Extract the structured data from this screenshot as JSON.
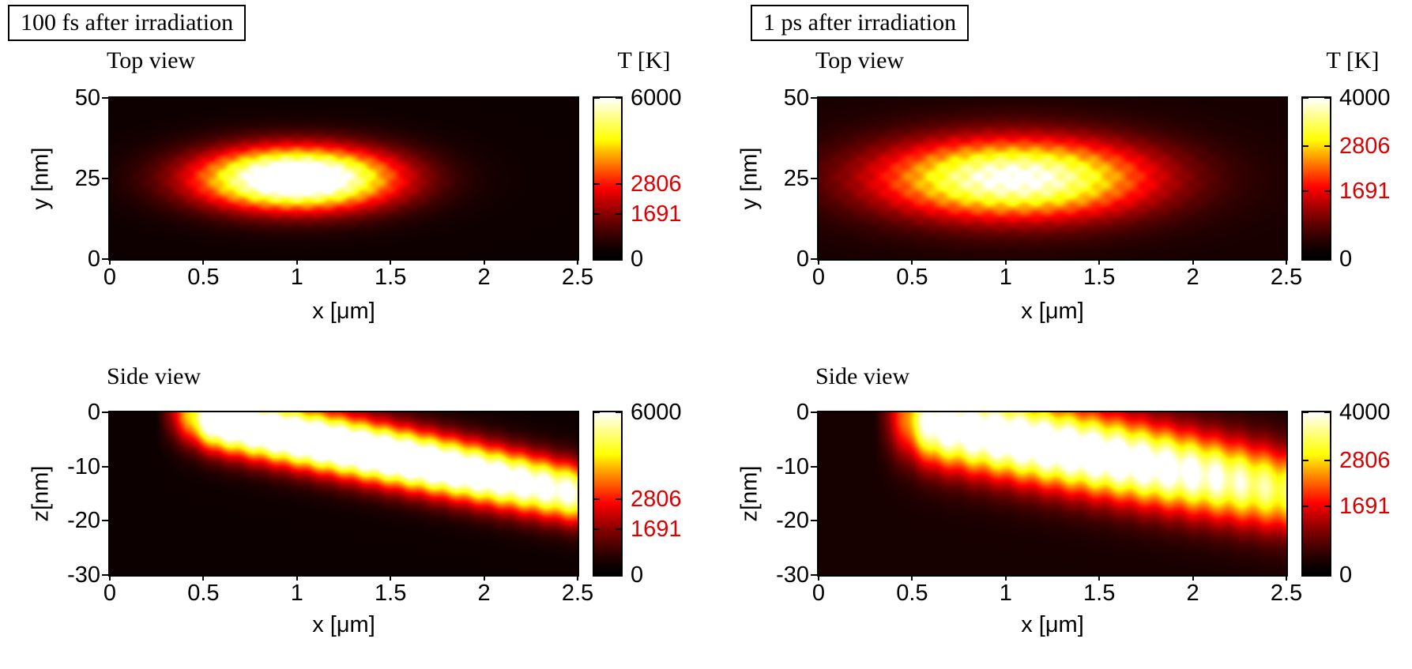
{
  "headers": [
    {
      "label": "100 fs after irradiation"
    },
    {
      "label": "1 ps after irradiation"
    }
  ],
  "colors": {
    "colorbar_tick_red": "#dd0000",
    "axis": "#000000",
    "page_background": "#ffffff"
  },
  "chart_data": [
    {
      "panel": "top-view-100fs",
      "type": "heatmap",
      "title": "Top view",
      "colorbar_title": "T [K]",
      "xlabel": "x [μm]",
      "ylabel": "y [nm]",
      "xlim": [
        0,
        2.5
      ],
      "ylim": [
        0,
        50
      ],
      "xticks": [
        "0",
        "0.5",
        "1",
        "1.5",
        "2",
        "2.5"
      ],
      "yticks": [
        "50",
        "25",
        "0"
      ],
      "colormap": "hot",
      "grid": false,
      "colorbar": {
        "min": 0,
        "max": 6000,
        "ticks": [
          {
            "label": "6000",
            "value": 6000,
            "red": false
          },
          {
            "label": "2806",
            "value": 2806,
            "red": true
          },
          {
            "label": "1691",
            "value": 1691,
            "red": true
          },
          {
            "label": "0",
            "value": 0,
            "red": false
          }
        ]
      },
      "field": {
        "model": "spot",
        "cx": 1.0,
        "cy": 25,
        "sx": 0.38,
        "sy": 7,
        "peak": 7200,
        "bg": 300,
        "mod": 0.05,
        "modkx": 55,
        "modky": 1.2
      }
    },
    {
      "panel": "side-view-100fs",
      "type": "heatmap",
      "title": "Side view",
      "xlabel": "x [μm]",
      "ylabel": "z[nm]",
      "xlim": [
        0,
        2.5
      ],
      "ylim": [
        -30,
        0
      ],
      "xticks": [
        "0",
        "0.5",
        "1",
        "1.5",
        "2",
        "2.5"
      ],
      "yticks": [
        "0",
        "-10",
        "-20",
        "-30"
      ],
      "colormap": "hot",
      "grid": false,
      "colorbar": {
        "min": 0,
        "max": 6000,
        "ticks": [
          {
            "label": "6000",
            "value": 6000,
            "red": false
          },
          {
            "label": "2806",
            "value": 2806,
            "red": true
          },
          {
            "label": "1691",
            "value": 1691,
            "red": true
          },
          {
            "label": "0",
            "value": 0,
            "red": false
          }
        ]
      },
      "field": {
        "model": "band",
        "x0": 0.35,
        "z0": 0,
        "slope": -7.0,
        "sz": 4.0,
        "peak": 7600,
        "bg": 300,
        "ampx": 1.2,
        "ampsx": 1.7,
        "cut0": 0.25,
        "cut1": 0.55,
        "mod": 0.06,
        "modkx": 52
      }
    },
    {
      "panel": "top-view-1ps",
      "type": "heatmap",
      "title": "Top view",
      "colorbar_title": "T [K]",
      "xlabel": "x [μm]",
      "ylabel": "y [nm]",
      "xlim": [
        0,
        2.5
      ],
      "ylim": [
        0,
        50
      ],
      "xticks": [
        "0",
        "0.5",
        "1",
        "1.5",
        "2",
        "2.5"
      ],
      "yticks": [
        "50",
        "25",
        "0"
      ],
      "colormap": "hot",
      "grid": false,
      "colorbar": {
        "min": 0,
        "max": 4000,
        "ticks": [
          {
            "label": "4000",
            "value": 4000,
            "red": false
          },
          {
            "label": "2806",
            "value": 2806,
            "red": true
          },
          {
            "label": "1691",
            "value": 1691,
            "red": true
          },
          {
            "label": "0",
            "value": 0,
            "red": false
          }
        ]
      },
      "field": {
        "model": "spot",
        "cx": 1.05,
        "cy": 25,
        "sx": 0.52,
        "sy": 9,
        "peak": 3800,
        "bg": 300,
        "mod": 0.06,
        "modkx": 50,
        "modky": 1.1
      }
    },
    {
      "panel": "side-view-1ps",
      "type": "heatmap",
      "title": "Side view",
      "xlabel": "x [μm]",
      "ylabel": "z[nm]",
      "xlim": [
        0,
        2.5
      ],
      "ylim": [
        -30,
        0
      ],
      "xticks": [
        "0",
        "0.5",
        "1",
        "1.5",
        "2",
        "2.5"
      ],
      "yticks": [
        "0",
        "-10",
        "-20",
        "-30"
      ],
      "colormap": "hot",
      "grid": false,
      "colorbar": {
        "min": 0,
        "max": 4000,
        "ticks": [
          {
            "label": "4000",
            "value": 4000,
            "red": false
          },
          {
            "label": "2806",
            "value": 2806,
            "red": true
          },
          {
            "label": "1691",
            "value": 1691,
            "red": true
          },
          {
            "label": "0",
            "value": 0,
            "red": false
          }
        ]
      },
      "field": {
        "model": "band",
        "x0": 0.3,
        "z0": 0,
        "slope": -6.6,
        "sz": 5.5,
        "peak": 4400,
        "bg": 300,
        "ampx": 1.2,
        "ampsx": 1.5,
        "cut0": 0.3,
        "cut1": 0.6,
        "mod": 0.07,
        "modkx": 48
      }
    }
  ]
}
